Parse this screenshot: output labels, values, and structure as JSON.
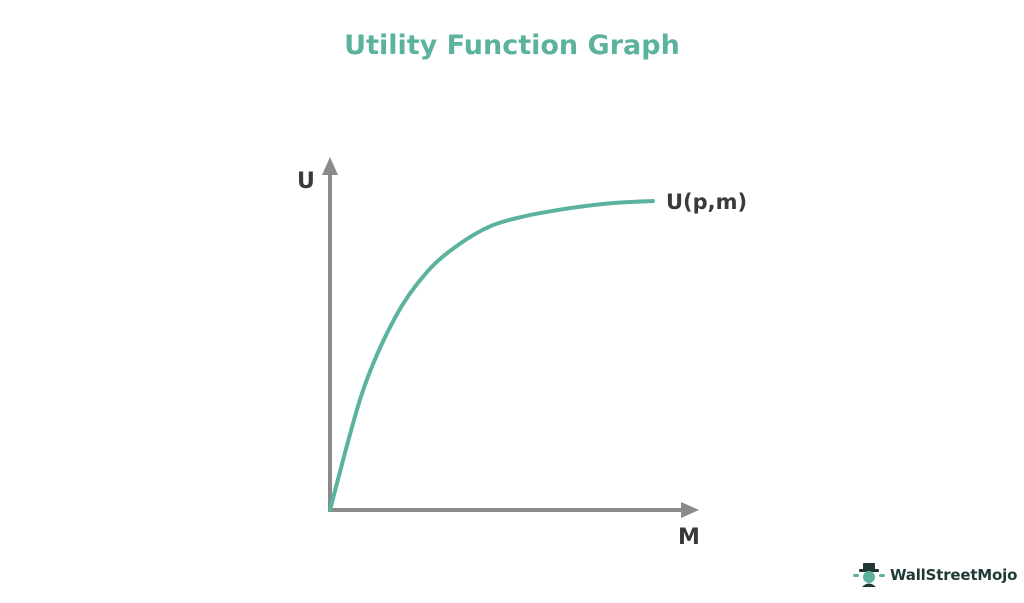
{
  "chart_data": {
    "type": "line",
    "title": "Utility Function Graph",
    "xlabel": "M",
    "ylabel": "U",
    "grid": false,
    "legend": "none",
    "axis_ticks": false,
    "series": [
      {
        "name": "U(p,m)",
        "color": "#5bb29e",
        "shape": "concave-saturating",
        "x": [
          0,
          0.1,
          0.2,
          0.3,
          0.4,
          0.5,
          0.6,
          0.7,
          0.8,
          0.9,
          1.0
        ],
        "y": [
          0,
          0.38,
          0.62,
          0.77,
          0.86,
          0.92,
          0.95,
          0.97,
          0.985,
          0.995,
          1.0
        ]
      }
    ]
  },
  "colors": {
    "title": "#5bb29e",
    "axis": "#8a8a8a",
    "label": "#3a3a3a"
  },
  "brand": {
    "name": "WallStreetMojo",
    "icon": "wallstreetmojo-mascot-logo"
  }
}
